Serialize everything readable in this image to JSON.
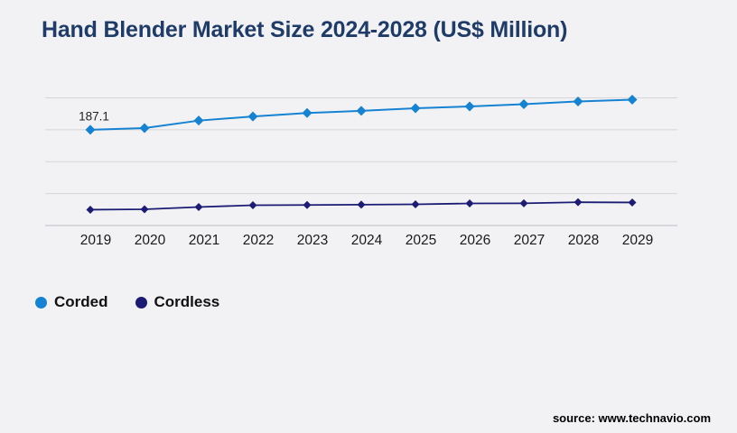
{
  "title": "Hand Blender Market Size 2024-2028 (US$ Million)",
  "source": "source: www.technavio.com",
  "colors": {
    "background": "#f2f2f5",
    "title": "#1f3c68",
    "grid": "#d6d6d8",
    "axis": "#bfbfc2",
    "tick_text": "#1a1a1a",
    "annotation_text": "#222222",
    "corded": "#1583d1",
    "cordless": "#1c1c74"
  },
  "chart_data": {
    "type": "line",
    "title": "Hand Blender Market Size 2024-2028 (US$ Million)",
    "xlabel": "",
    "ylabel": "",
    "categories": [
      "2019",
      "2020",
      "2021",
      "2022",
      "2023",
      "2024",
      "2025",
      "2026",
      "2027",
      "2028",
      "2029"
    ],
    "series": [
      {
        "name": "Corded",
        "color": "#1583d1",
        "marker": "diamond",
        "values": [
          187.1,
          189.8,
          201.5,
          207.9,
          213.4,
          216.8,
          220.9,
          223.6,
          227.2,
          231.5,
          234.3
        ]
      },
      {
        "name": "Cordless",
        "color": "#1c1c74",
        "marker": "diamond",
        "values": [
          61.9,
          62.5,
          66.1,
          68.9,
          69.3,
          69.8,
          70.3,
          71.7,
          71.9,
          73.6,
          73.2
        ]
      }
    ],
    "ylim": [
      37.1,
      237.1
    ],
    "grid": true,
    "gridline_count": 5,
    "y_axis_labels_visible": false,
    "legend_position": "bottom-left",
    "annotations": [
      {
        "series": "Corded",
        "x": "2019",
        "label": "187.1"
      }
    ]
  }
}
